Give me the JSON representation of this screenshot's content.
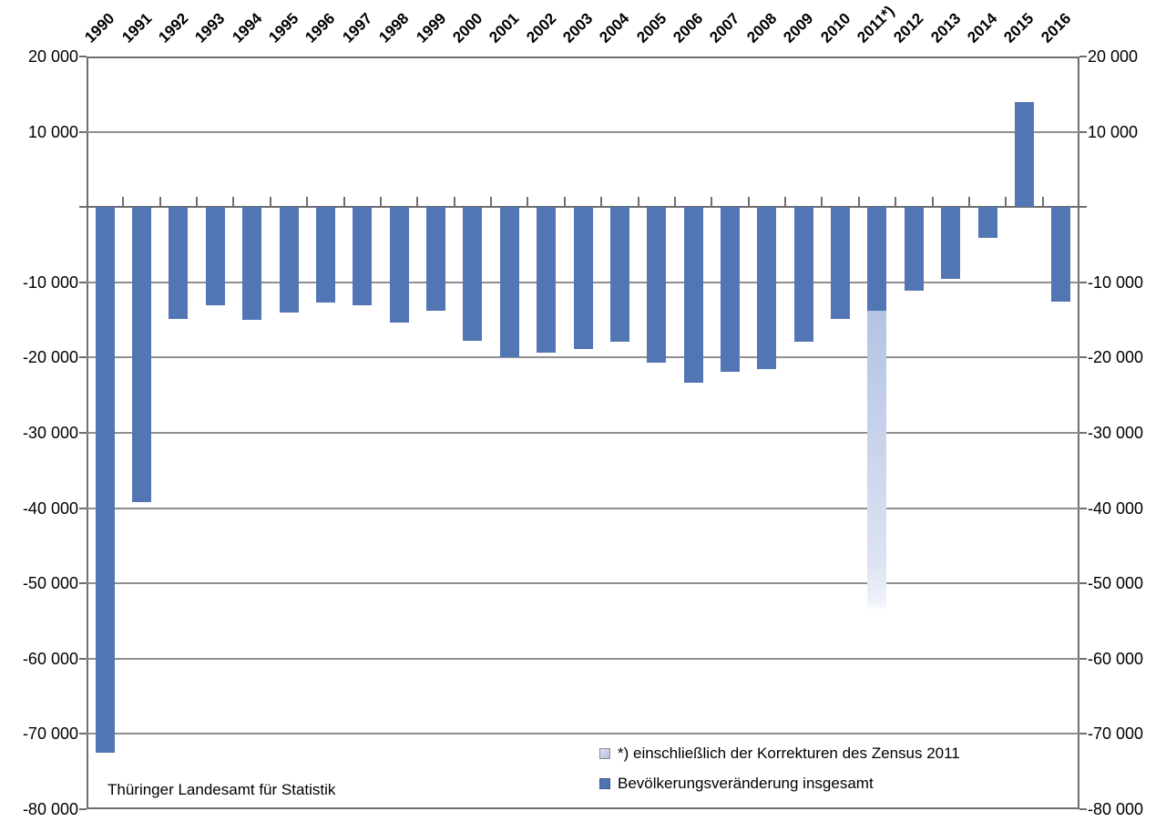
{
  "chart_data": {
    "type": "bar",
    "title": "",
    "xlabel": "",
    "ylabel": "",
    "categories": [
      "1990",
      "1991",
      "1992",
      "1993",
      "1994",
      "1995",
      "1996",
      "1997",
      "1998",
      "1999",
      "2000",
      "2001",
      "2002",
      "2003",
      "2004",
      "2005",
      "2006",
      "2007",
      "2008",
      "2009",
      "2010",
      "2011*)",
      "2012",
      "2013",
      "2014",
      "2015",
      "2016"
    ],
    "series": [
      {
        "name": "Bevölkerungsveränderung insgesamt",
        "color": "#5276b4",
        "values": [
          -72500,
          -39200,
          -14900,
          -13000,
          -15000,
          -14000,
          -12700,
          -13000,
          -15300,
          -13800,
          -17800,
          -19900,
          -19300,
          -18900,
          -17900,
          -20700,
          -23400,
          -21900,
          -21500,
          -17900,
          -14900,
          -13800,
          -11100,
          -9600,
          -4100,
          14000,
          -12600
        ]
      }
    ],
    "census_correction_2011": {
      "category": "2011*)",
      "regular_change": -13800,
      "total_including_corrections": -53400,
      "color_top": "#b4c3e3",
      "color_bottom": "#e9edf7",
      "note": "*) einschließlich der Korrekturen des Zensus 2011"
    },
    "y_axis": {
      "ylim": [
        -80000,
        20000
      ],
      "tick_step": 10000,
      "zero_label_hidden": true,
      "tick_values": [
        20000,
        10000,
        0,
        -10000,
        -20000,
        -30000,
        -40000,
        -50000,
        -60000,
        -70000,
        -80000
      ],
      "gridline_values": [
        10000,
        -10000,
        -20000,
        -30000,
        -40000,
        -50000,
        -60000,
        -70000
      ],
      "labels": [
        {
          "value": 20000,
          "label": "20 000"
        },
        {
          "value": 10000,
          "label": "10 000"
        },
        {
          "value": -10000,
          "label": "-10 000"
        },
        {
          "value": -20000,
          "label": "-20 000"
        },
        {
          "value": -30000,
          "label": "-30 000"
        },
        {
          "value": -40000,
          "label": "-40 000"
        },
        {
          "value": -50000,
          "label": "-50 000"
        },
        {
          "value": -60000,
          "label": "-60 000"
        },
        {
          "value": -70000,
          "label": "-70 000"
        },
        {
          "value": -80000,
          "label": "-80 000"
        }
      ],
      "labels_on_both_sides": true
    },
    "grid": true,
    "legend_position": "inside-bottom-right"
  },
  "legend": {
    "items": [
      {
        "swatch": "census-light",
        "label": "*) einschließlich der Korrekturen des Zensus 2011"
      },
      {
        "swatch": "main-dark",
        "label": "Bevölkerungsveränderung insgesamt"
      }
    ]
  },
  "source": {
    "label": "Thüringer Landesamt für Statistik"
  },
  "colors": {
    "bar": "#5276b4",
    "census_bar_top": "#b4c3e3",
    "census_bar_bottom": "#e9edf7",
    "gridline": "#8f8f8f",
    "axis": "#6e6e6e",
    "text": "#000000",
    "background": "#ffffff"
  }
}
